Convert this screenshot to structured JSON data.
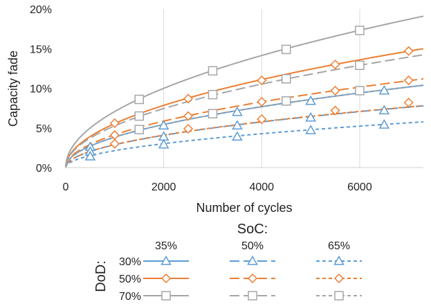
{
  "chart_data": {
    "type": "line",
    "title": "",
    "xlabel": "Number of cycles",
    "ylabel": "Capacity fade",
    "xlim": [
      0,
      7300
    ],
    "ylim": [
      0,
      20
    ],
    "xticks": [
      0,
      2000,
      4000,
      6000
    ],
    "xtick_labels": [
      "0",
      "2000",
      "4000",
      "6000"
    ],
    "yticks": [
      0,
      5,
      10,
      15,
      20
    ],
    "ytick_labels": [
      "0%",
      "5%",
      "10%",
      "15%",
      "20%"
    ],
    "grid": "vertical",
    "colors": {
      "dod30": "#5B9BD5",
      "dod50": "#ED7D31",
      "dod70": "#A5A5A5"
    },
    "legend": {
      "soc_title": "SoC:",
      "dod_title": "DoD:",
      "soc_labels": [
        "35%",
        "50%",
        "65%"
      ],
      "dod_labels": [
        "30%",
        "50%",
        "70%"
      ]
    },
    "series": [
      {
        "name": "DoD 30% / SoC 35%",
        "dod": "30%",
        "soc": "35%",
        "dash": "solid",
        "marker": "triangle",
        "color": "#5B9BD5",
        "k": 0.1215,
        "x": [
          500,
          2000,
          3500,
          5000,
          6500
        ],
        "values": [
          2.6,
          5.3,
          7.0,
          8.4,
          9.7
        ]
      },
      {
        "name": "DoD 30% / SoC 50%",
        "dod": "30%",
        "soc": "50%",
        "dash": "longdash",
        "marker": "triangle",
        "color": "#5B9BD5",
        "k": 0.0911,
        "x": [
          500,
          2000,
          3500,
          5000,
          6500
        ],
        "values": [
          2.0,
          3.9,
          5.3,
          6.3,
          7.2
        ]
      },
      {
        "name": "DoD 30% / SoC 65%",
        "dod": "30%",
        "soc": "65%",
        "dash": "shortdash",
        "marker": "triangle",
        "color": "#5B9BD5",
        "k": 0.0675,
        "x": [
          500,
          2000,
          3500,
          5000,
          6500
        ],
        "values": [
          1.4,
          2.9,
          3.9,
          4.7,
          5.4
        ]
      },
      {
        "name": "DoD 50% / SoC 35%",
        "dod": "50%",
        "soc": "35%",
        "dash": "solid",
        "marker": "diamond",
        "color": "#ED7D31",
        "k": 0.1755,
        "x": [
          1000,
          2500,
          4000,
          5500,
          7000
        ],
        "values": [
          5.6,
          8.7,
          11.0,
          13.0,
          14.7
        ]
      },
      {
        "name": "DoD 50% / SoC 50%",
        "dod": "50%",
        "soc": "50%",
        "dash": "longdash",
        "marker": "diamond",
        "color": "#ED7D31",
        "k": 0.131,
        "x": [
          1000,
          2500,
          4000,
          5500,
          7000
        ],
        "values": [
          4.1,
          6.5,
          8.3,
          9.7,
          11.0
        ]
      },
      {
        "name": "DoD 50% / SoC 65%",
        "dod": "50%",
        "soc": "65%",
        "dash": "shortdash",
        "marker": "diamond",
        "color": "#ED7D31",
        "k": 0.0915,
        "x": [
          1000,
          2500,
          4000,
          5500,
          7000
        ],
        "values": [
          3.0,
          4.9,
          6.1,
          7.2,
          8.2
        ]
      },
      {
        "name": "DoD 70% / SoC 35%",
        "dod": "70%",
        "soc": "35%",
        "dash": "solid",
        "marker": "square",
        "color": "#A5A5A5",
        "k": 0.2235,
        "x": [
          1500,
          3000,
          4500,
          6000
        ],
        "values": [
          8.6,
          12.2,
          14.9,
          17.3
        ]
      },
      {
        "name": "DoD 70% / SoC 50%",
        "dod": "70%",
        "soc": "50%",
        "dash": "longdash",
        "marker": "square",
        "color": "#A5A5A5",
        "k": 0.1665,
        "x": [
          1500,
          3000,
          4500,
          6000
        ],
        "values": [
          6.5,
          9.2,
          11.2,
          12.9
        ]
      },
      {
        "name": "DoD 70% / SoC 65%",
        "dod": "70%",
        "soc": "65%",
        "dash": "shortdash",
        "marker": "square",
        "color": "#A5A5A5",
        "k": 0.1215,
        "x": [
          1500,
          3000,
          4500,
          6000
        ],
        "values": [
          4.8,
          6.8,
          8.4,
          9.7
        ]
      }
    ]
  }
}
